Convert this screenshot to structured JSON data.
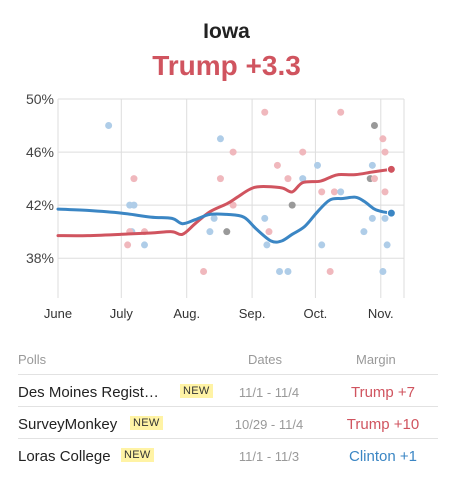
{
  "header": {
    "state": "Iowa",
    "leader_text": "Trump +3.3",
    "leader_color": "#d0545f"
  },
  "colors": {
    "trump": "#d0545f",
    "clinton": "#3b86c4",
    "trump_dot": "#f0b8bd",
    "clinton_dot": "#afcde8",
    "other_dot": "#999999",
    "grid": "#dddddd"
  },
  "chart_data": {
    "type": "line",
    "title": "Iowa",
    "subtitle": "Trump +3.3",
    "x_tick_labels": [
      "June",
      "July",
      "Aug.",
      "Sep.",
      "Oct.",
      "Nov."
    ],
    "y_ticks": [
      38,
      42,
      46,
      50
    ],
    "y_tick_labels": [
      "38%",
      "42%",
      "46%",
      "50%"
    ],
    "ylim": [
      35,
      50
    ],
    "xlim": [
      "2016-06-01",
      "2016-11-12"
    ],
    "grid": true,
    "series": [
      {
        "name": "Trump",
        "color": "#d0545f",
        "points": [
          [
            "2016-06-01",
            39.7
          ],
          [
            "2016-06-15",
            39.7
          ],
          [
            "2016-07-01",
            39.8
          ],
          [
            "2016-07-15",
            39.9
          ],
          [
            "2016-07-25",
            40.0
          ],
          [
            "2016-07-30",
            39.8
          ],
          [
            "2016-08-05",
            40.6
          ],
          [
            "2016-08-12",
            41.5
          ],
          [
            "2016-08-20",
            42.1
          ],
          [
            "2016-08-25",
            42.6
          ],
          [
            "2016-08-31",
            43.2
          ],
          [
            "2016-09-05",
            43.4
          ],
          [
            "2016-09-15",
            43.3
          ],
          [
            "2016-09-20",
            43.0
          ],
          [
            "2016-09-25",
            43.7
          ],
          [
            "2016-10-03",
            43.8
          ],
          [
            "2016-10-08",
            44.1
          ],
          [
            "2016-10-12",
            44.3
          ],
          [
            "2016-10-20",
            44.3
          ],
          [
            "2016-10-28",
            44.5
          ],
          [
            "2016-11-06",
            44.7
          ]
        ]
      },
      {
        "name": "Clinton",
        "color": "#3b86c4",
        "points": [
          [
            "2016-06-01",
            41.7
          ],
          [
            "2016-06-15",
            41.6
          ],
          [
            "2016-07-01",
            41.4
          ],
          [
            "2016-07-15",
            41.1
          ],
          [
            "2016-07-25",
            41.0
          ],
          [
            "2016-07-30",
            40.6
          ],
          [
            "2016-08-05",
            40.9
          ],
          [
            "2016-08-12",
            41.3
          ],
          [
            "2016-08-20",
            41.3
          ],
          [
            "2016-08-28",
            41.1
          ],
          [
            "2016-09-03",
            40.2
          ],
          [
            "2016-09-10",
            39.3
          ],
          [
            "2016-09-15",
            39.3
          ],
          [
            "2016-09-20",
            39.8
          ],
          [
            "2016-09-26",
            40.4
          ],
          [
            "2016-10-02",
            41.5
          ],
          [
            "2016-10-08",
            42.4
          ],
          [
            "2016-10-14",
            42.5
          ],
          [
            "2016-10-20",
            42.6
          ],
          [
            "2016-10-24",
            42.3
          ],
          [
            "2016-10-29",
            41.7
          ],
          [
            "2016-11-02",
            41.5
          ],
          [
            "2016-11-06",
            41.4
          ]
        ]
      }
    ],
    "polls": [
      [
        "2016-06-25",
        48.0,
        "clinton"
      ],
      [
        "2016-07-05",
        42.0,
        "clinton"
      ],
      [
        "2016-07-07",
        42.0,
        "clinton"
      ],
      [
        "2016-07-06",
        40.0,
        "clinton"
      ],
      [
        "2016-07-12",
        39.0,
        "clinton"
      ],
      [
        "2016-07-07",
        44.0,
        "trump"
      ],
      [
        "2016-07-05",
        40.0,
        "trump"
      ],
      [
        "2016-07-04",
        39.0,
        "trump"
      ],
      [
        "2016-07-12",
        40.0,
        "trump"
      ],
      [
        "2016-08-09",
        37.0,
        "trump"
      ],
      [
        "2016-08-14",
        41.0,
        "clinton"
      ],
      [
        "2016-08-12",
        40.0,
        "clinton"
      ],
      [
        "2016-08-17",
        47.0,
        "clinton"
      ],
      [
        "2016-08-17",
        44.0,
        "trump"
      ],
      [
        "2016-08-20",
        40.0,
        "other"
      ],
      [
        "2016-08-23",
        46.0,
        "trump"
      ],
      [
        "2016-08-23",
        42.0,
        "trump"
      ],
      [
        "2016-09-07",
        49.0,
        "trump"
      ],
      [
        "2016-09-07",
        41.0,
        "clinton"
      ],
      [
        "2016-09-08",
        39.0,
        "clinton"
      ],
      [
        "2016-09-09",
        40.0,
        "trump"
      ],
      [
        "2016-09-13",
        45.0,
        "trump"
      ],
      [
        "2016-09-14",
        37.0,
        "clinton"
      ],
      [
        "2016-09-18",
        37.0,
        "clinton"
      ],
      [
        "2016-09-18",
        44.0,
        "trump"
      ],
      [
        "2016-09-20",
        42.0,
        "other"
      ],
      [
        "2016-09-25",
        46.0,
        "trump"
      ],
      [
        "2016-09-25",
        44.0,
        "clinton"
      ],
      [
        "2016-10-02",
        45.0,
        "clinton"
      ],
      [
        "2016-10-04",
        43.0,
        "trump"
      ],
      [
        "2016-10-04",
        39.0,
        "clinton"
      ],
      [
        "2016-10-08",
        37.0,
        "trump"
      ],
      [
        "2016-10-10",
        43.0,
        "trump"
      ],
      [
        "2016-10-13",
        49.0,
        "trump"
      ],
      [
        "2016-10-13",
        43.0,
        "clinton"
      ],
      [
        "2016-10-24",
        40.0,
        "clinton"
      ],
      [
        "2016-10-27",
        44.0,
        "other"
      ],
      [
        "2016-10-28",
        45.0,
        "clinton"
      ],
      [
        "2016-10-28",
        41.0,
        "clinton"
      ],
      [
        "2016-10-29",
        48.0,
        "other"
      ],
      [
        "2016-10-29",
        44.0,
        "trump"
      ],
      [
        "2016-11-02",
        47.0,
        "trump"
      ],
      [
        "2016-11-03",
        46.0,
        "trump"
      ],
      [
        "2016-11-03",
        43.0,
        "trump"
      ],
      [
        "2016-11-03",
        41.0,
        "clinton"
      ],
      [
        "2016-11-02",
        37.0,
        "clinton"
      ],
      [
        "2016-11-04",
        39.0,
        "clinton"
      ]
    ]
  },
  "table": {
    "headers": {
      "polls": "Polls",
      "dates": "Dates",
      "margin": "Margin"
    },
    "rows": [
      {
        "pollster": "Des Moines Regist…",
        "badge": "NEW",
        "dates": "11/1 - 11/4",
        "margin": "Trump +7",
        "margin_color": "#d0545f"
      },
      {
        "pollster": "SurveyMonkey",
        "badge": "NEW",
        "dates": "10/29 - 11/4",
        "margin": "Trump +10",
        "margin_color": "#d0545f"
      },
      {
        "pollster": "Loras College",
        "badge": "NEW",
        "dates": "11/1 - 11/3",
        "margin": "Clinton +1",
        "margin_color": "#3b86c4"
      }
    ]
  }
}
